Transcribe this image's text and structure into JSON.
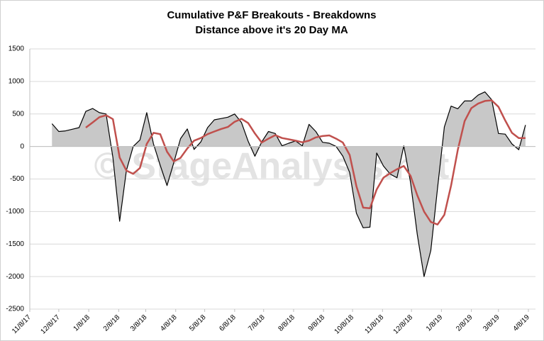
{
  "chart_data": {
    "type": "line",
    "title": "Cumulative P&F Breakouts - Breakdowns",
    "subtitle": "Distance above it's 20 Day MA",
    "watermark": "© StageAnalysis.net",
    "x": [
      "12/1/17",
      "12/8/17",
      "12/15/17",
      "12/22/17",
      "12/29/17",
      "1/5/18",
      "1/12/18",
      "1/19/18",
      "1/26/18",
      "2/2/18",
      "2/9/18",
      "2/16/18",
      "2/23/18",
      "3/2/18",
      "3/9/18",
      "3/16/18",
      "3/23/18",
      "3/30/18",
      "4/6/18",
      "4/13/18",
      "4/20/18",
      "4/27/18",
      "5/4/18",
      "5/11/18",
      "5/18/18",
      "5/25/18",
      "6/1/18",
      "6/8/18",
      "6/15/18",
      "6/22/18",
      "6/29/18",
      "7/6/18",
      "7/13/18",
      "7/20/18",
      "7/27/18",
      "8/3/18",
      "8/10/18",
      "8/17/18",
      "8/24/18",
      "8/31/18",
      "9/7/18",
      "9/14/18",
      "9/21/18",
      "9/28/18",
      "10/5/18",
      "10/12/18",
      "10/19/18",
      "10/26/18",
      "11/2/18",
      "11/9/18",
      "11/16/18",
      "11/23/18",
      "11/30/18",
      "12/7/18",
      "12/14/18",
      "12/21/18",
      "12/28/18",
      "1/4/19",
      "1/11/19",
      "1/18/19",
      "1/25/19",
      "2/1/19",
      "2/8/19",
      "2/15/19",
      "2/22/19",
      "3/1/19",
      "3/8/19",
      "3/15/19",
      "3/22/19",
      "3/29/19",
      "4/5/19"
    ],
    "series": [
      {
        "type": "area",
        "color": "#000000",
        "fill": "#c8c8c8",
        "values": [
          350,
          230,
          240,
          265,
          290,
          540,
          585,
          520,
          500,
          -170,
          -1150,
          -370,
          0,
          100,
          520,
          40,
          -290,
          -600,
          -250,
          120,
          270,
          -45,
          70,
          290,
          410,
          430,
          450,
          500,
          370,
          80,
          -150,
          70,
          230,
          200,
          10,
          50,
          85,
          10,
          340,
          230,
          65,
          50,
          0,
          -150,
          -400,
          -1025,
          -1250,
          -1240,
          -100,
          -300,
          -425,
          -480,
          10,
          -550,
          -1350,
          -2000,
          -1600,
          -640,
          300,
          620,
          580,
          700,
          700,
          790,
          840,
          720,
          200,
          190,
          40,
          -50,
          330
        ]
      },
      {
        "type": "line",
        "color": "#c0504d",
        "values": [
          null,
          null,
          null,
          null,
          null,
          290,
          370,
          450,
          480,
          420,
          -170,
          -370,
          -420,
          -330,
          40,
          210,
          190,
          -80,
          -230,
          -175,
          -30,
          90,
          130,
          190,
          230,
          270,
          300,
          380,
          425,
          360,
          200,
          60,
          120,
          175,
          130,
          110,
          90,
          65,
          90,
          140,
          160,
          170,
          120,
          60,
          -130,
          -610,
          -940,
          -950,
          -660,
          -480,
          -410,
          -350,
          -300,
          -450,
          -750,
          -1000,
          -1160,
          -1200,
          -1050,
          -600,
          -50,
          390,
          590,
          660,
          700,
          710,
          610,
          400,
          210,
          130,
          130
        ]
      }
    ],
    "xlim": [
      "11/8/17",
      "4/8/19"
    ],
    "xticks": [
      "11/8/17",
      "12/8/17",
      "1/8/18",
      "2/8/18",
      "3/8/18",
      "4/8/18",
      "5/8/18",
      "6/8/18",
      "7/8/18",
      "8/8/18",
      "9/8/18",
      "10/8/18",
      "11/8/18",
      "12/8/18",
      "1/8/19",
      "2/8/19",
      "3/8/19",
      "4/8/19"
    ],
    "ylim": [
      -2500,
      1500
    ],
    "yticks": [
      1500,
      1000,
      500,
      0,
      -500,
      -1000,
      -1500,
      -2000,
      -2500
    ],
    "grid": true
  }
}
